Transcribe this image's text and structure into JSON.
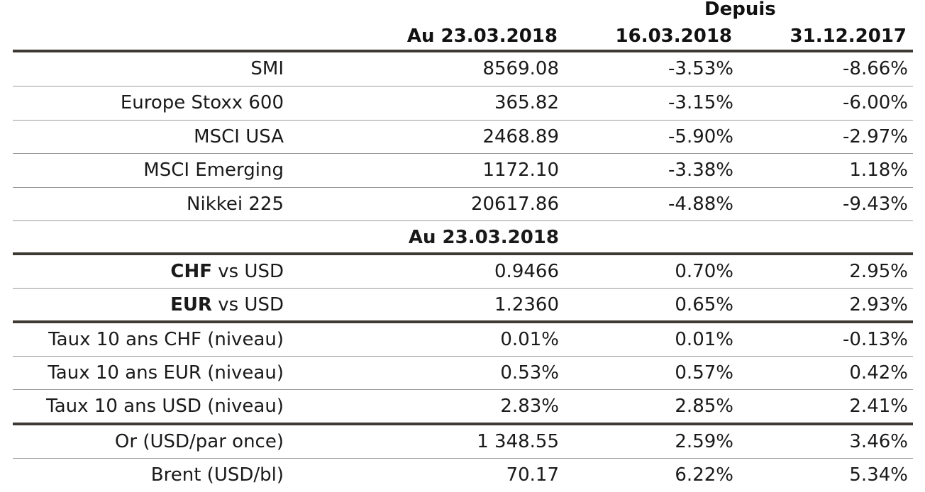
{
  "header": {
    "depuis": "Depuis",
    "col1": "Au 23.03.2018",
    "col2": "16.03.2018",
    "col3": "31.12.2017"
  },
  "rows": [
    {
      "label": "SMI",
      "v1": "8569.08",
      "v2": "-3.53%",
      "v3": "-8.66%"
    },
    {
      "label": "Europe Stoxx 600",
      "v1": "365.82",
      "v2": "-3.15%",
      "v3": "-6.00%"
    },
    {
      "label": "MSCI USA",
      "v1": "2468.89",
      "v2": "-5.90%",
      "v3": "-2.97%"
    },
    {
      "label": "MSCI Emerging",
      "v1": "1172.10",
      "v2": "-3.38%",
      "v3": "1.18%"
    },
    {
      "label": "Nikkei 225",
      "v1": "20617.86",
      "v2": "-4.88%",
      "v3": "-9.43%"
    }
  ],
  "section": "Au 23.03.2018",
  "fx_rows": [
    {
      "bold": "CHF",
      "rest": " vs USD",
      "v1": "0.9466",
      "v2": "0.70%",
      "v3": "2.95%"
    },
    {
      "bold": "EUR",
      "rest": " vs USD",
      "v1": "1.2360",
      "v2": "0.65%",
      "v3": "2.93%"
    }
  ],
  "rate_rows": [
    {
      "label": "Taux 10 ans CHF (niveau)",
      "v1": "0.01%",
      "v2": "0.01%",
      "v3": "-0.13%"
    },
    {
      "label": "Taux 10 ans EUR (niveau)",
      "v1": "0.53%",
      "v2": "0.57%",
      "v3": "0.42%"
    },
    {
      "label": "Taux 10 ans USD (niveau)",
      "v1": "2.83%",
      "v2": "2.85%",
      "v3": "2.41%"
    }
  ],
  "commodity_rows": [
    {
      "label": "Or (USD/par once)",
      "v1": "1 348.55",
      "v2": "2.59%",
      "v3": "3.46%"
    },
    {
      "label": "Brent (USD/bl)",
      "v1": "70.17",
      "v2": "6.22%",
      "v3": "5.34%"
    }
  ]
}
